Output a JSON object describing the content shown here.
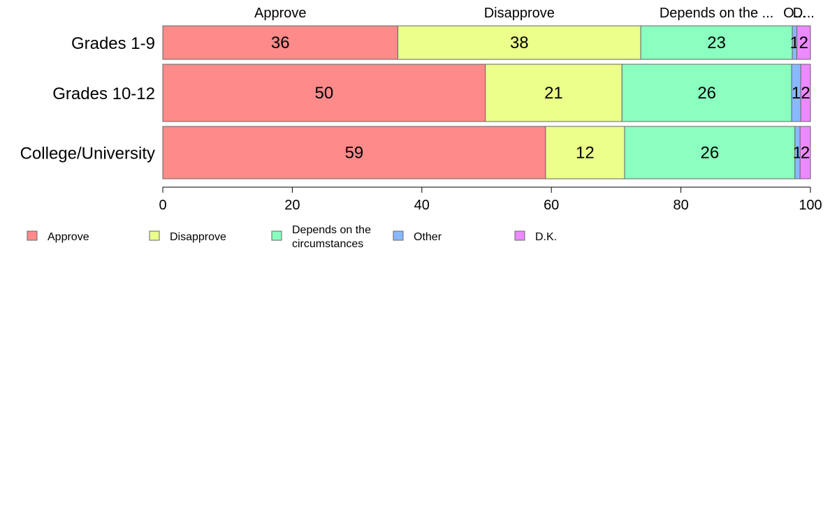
{
  "chart_data": {
    "type": "bar",
    "orientation": "horizontal",
    "stacked": true,
    "categories": [
      "Grades 1-9",
      "Grades 10-12",
      "College/University"
    ],
    "series": [
      {
        "name": "Approve",
        "values": [
          36.3,
          49.8,
          59.1
        ],
        "labels": [
          "36",
          "50",
          "59"
        ]
      },
      {
        "name": "Disapprove",
        "values": [
          37.5,
          21.1,
          12.2
        ],
        "labels": [
          "38",
          "21",
          "12"
        ]
      },
      {
        "name": "Depends on the circumstances",
        "values": [
          23.4,
          26.2,
          26.3
        ],
        "labels": [
          "23",
          "26",
          "26"
        ]
      },
      {
        "name": "Other",
        "values": [
          0.7,
          1.4,
          0.8
        ],
        "labels": [
          "1",
          "1",
          "1"
        ]
      },
      {
        "name": "D.K.",
        "values": [
          2.1,
          1.5,
          1.6
        ],
        "labels": [
          "2",
          "2",
          "2"
        ]
      }
    ],
    "top_labels": [
      "Approve",
      "Disapprove",
      "Depends on the ...",
      "O...",
      "D..."
    ],
    "legend_labels": [
      [
        "Approve"
      ],
      [
        "Disapprove"
      ],
      [
        "Depends on the",
        "circumstances"
      ],
      [
        "Other"
      ],
      [
        "D.K."
      ]
    ],
    "xlim": [
      0,
      100
    ],
    "xticks": [
      0,
      20,
      40,
      60,
      80,
      100
    ],
    "grid": false,
    "legend_position": "bottom-left",
    "colors": [
      "#ff8a8a",
      "#ecff8a",
      "#8affbf",
      "#8ab8ff",
      "#ec8aff"
    ],
    "edge_color": "#666666"
  }
}
